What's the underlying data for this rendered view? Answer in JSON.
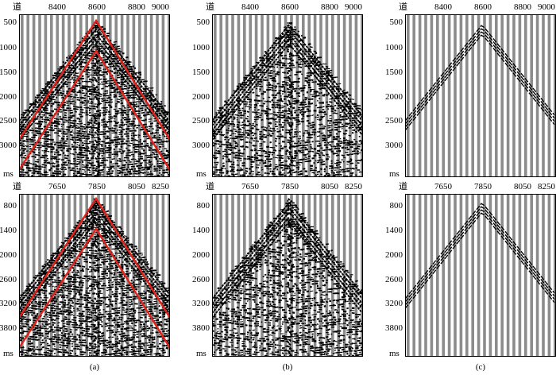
{
  "trace_label": "道",
  "time_unit": "ms",
  "captions": [
    "(a)",
    "(b)",
    "(c)"
  ],
  "rows": [
    {
      "x_ticks": [
        "8400",
        "8600",
        "8800",
        "9000"
      ],
      "y_ticks": [
        "500",
        "1000",
        "1500",
        "2000",
        "2500",
        "3000"
      ]
    },
    {
      "x_ticks": [
        "7650",
        "7850",
        "8050",
        "8250"
      ],
      "y_ticks": [
        "800",
        "1400",
        "2000",
        "2600",
        "3200",
        "3800"
      ]
    }
  ],
  "panels": [
    {
      "id": "a",
      "kind": "input-with-window"
    },
    {
      "id": "b",
      "kind": "filtered"
    },
    {
      "id": "c",
      "kind": "separated-event"
    }
  ],
  "colors": {
    "trace": "#000000",
    "gap": "#8c8c8c",
    "window": "#e32119"
  }
}
